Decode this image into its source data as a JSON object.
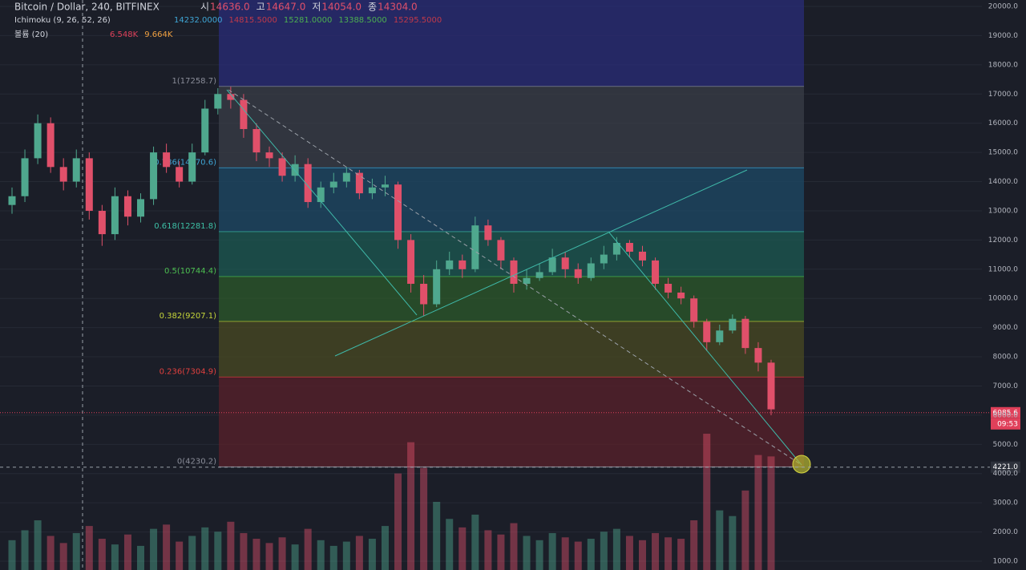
{
  "chart_data": {
    "type": "candlestick",
    "title": "Bitcoin / Dollar, 240, BITFINEX",
    "legend_ohlc": [
      {
        "label": "시",
        "value": "14636.0"
      },
      {
        "label": "고",
        "value": "14647.0"
      },
      {
        "label": "저",
        "value": "14054.0"
      },
      {
        "label": "종",
        "value": "14304.0"
      }
    ],
    "indicators": [
      {
        "name": "Ichimoku (9, 26, 52, 26)",
        "values": [
          "14232.0000",
          "14815.5000",
          "15281.0000",
          "13388.5000",
          "15295.5000"
        ],
        "colors": [
          "#3fa6d6",
          "#c0394a",
          "#4caf50",
          "#4caf50",
          "#c0394a"
        ]
      },
      {
        "name": "볼륨 (20)",
        "values": [
          "6.548K",
          "9.664K"
        ],
        "colors": [
          "#e0405a",
          "#f0a040"
        ]
      }
    ],
    "up_color": "#4fa88e",
    "down_color": "#e0506a",
    "ylim": [
      698,
      20220
    ],
    "yticks": [
      {
        "value": 1000,
        "label": "1000.0"
      },
      {
        "value": 2000,
        "label": "2000.0"
      },
      {
        "value": 3000,
        "label": "3000.0"
      },
      {
        "value": 4000,
        "label": "4000.0"
      },
      {
        "value": 5000,
        "label": "5000.0"
      },
      {
        "value": 6000,
        "label": "6000.0"
      },
      {
        "value": 7000,
        "label": "7000.0"
      },
      {
        "value": 8000,
        "label": "8000.0"
      },
      {
        "value": 9000,
        "label": "9000.0"
      },
      {
        "value": 10000,
        "label": "10000.0"
      },
      {
        "value": 11000,
        "label": "11000.0"
      },
      {
        "value": 12000,
        "label": "12000.0"
      },
      {
        "value": 13000,
        "label": "13000.0"
      },
      {
        "value": 14000,
        "label": "14000.0"
      },
      {
        "value": 15000,
        "label": "15000.0"
      },
      {
        "value": 16000,
        "label": "16000.0"
      },
      {
        "value": 17000,
        "label": "17000.0"
      },
      {
        "value": 18000,
        "label": "18000.0"
      },
      {
        "value": 19000,
        "label": "19000.0"
      },
      {
        "value": 20000,
        "label": "20000.0"
      }
    ],
    "grid": true,
    "open": [
      13200,
      13500,
      14800,
      16000,
      14500,
      14000,
      14800,
      13000,
      12200,
      13500,
      12800,
      13400,
      15000,
      14500,
      14000,
      15000,
      16500,
      17000,
      16800,
      15800,
      15000,
      14800,
      14200,
      14600,
      13300,
      13800,
      14000,
      14300,
      13600,
      13800,
      13900,
      12000,
      10500,
      9800,
      11000,
      11300,
      11000,
      12500,
      12000,
      11300,
      10500,
      10700,
      10900,
      11400,
      11000,
      10700,
      11200,
      11500,
      11900,
      11600,
      11300,
      10500,
      10200,
      10000,
      9200,
      8500,
      8900,
      9300,
      8300,
      7800
    ],
    "high": [
      13800,
      15100,
      16300,
      16200,
      14800,
      15100,
      15000,
      13200,
      13800,
      13700,
      13600,
      15200,
      15300,
      14700,
      15300,
      16800,
      17200,
      17250,
      17000,
      16000,
      15200,
      15000,
      14900,
      14800,
      14000,
      14300,
      14500,
      14400,
      14100,
      14200,
      14000,
      12200,
      10800,
      11300,
      11600,
      11500,
      12800,
      12700,
      12100,
      11400,
      11000,
      11200,
      11700,
      11600,
      11200,
      11400,
      11800,
      12100,
      12000,
      11800,
      11400,
      10700,
      10400,
      10100,
      9300,
      9100,
      9450,
      9400,
      8500,
      7900
    ],
    "low": [
      12900,
      13300,
      14600,
      14300,
      13700,
      13800,
      12700,
      11800,
      12000,
      12500,
      12600,
      13200,
      14300,
      13800,
      13900,
      14900,
      16300,
      16500,
      15500,
      14700,
      14500,
      14000,
      14000,
      13100,
      13100,
      13600,
      13800,
      13400,
      13400,
      13500,
      11700,
      10200,
      9400,
      9700,
      10800,
      10700,
      10900,
      11800,
      11000,
      10200,
      10300,
      10600,
      10800,
      10700,
      10500,
      10600,
      11000,
      11300,
      11400,
      11100,
      10300,
      10000,
      9800,
      9000,
      8200,
      8400,
      8800,
      8100,
      7500,
      6000
    ],
    "close": [
      13500,
      14800,
      16000,
      14500,
      14000,
      14800,
      13000,
      12200,
      13500,
      12800,
      13400,
      15000,
      14500,
      14000,
      15000,
      16500,
      17000,
      16800,
      15800,
      15000,
      14800,
      14200,
      14600,
      13300,
      13800,
      14000,
      14300,
      13600,
      13800,
      13900,
      12000,
      10500,
      9800,
      11000,
      11300,
      11000,
      12500,
      12000,
      11300,
      10500,
      10700,
      10900,
      11400,
      11000,
      10700,
      11200,
      11500,
      11900,
      11600,
      11300,
      10500,
      10200,
      10000,
      9200,
      8500,
      8900,
      9300,
      8300,
      7800,
      6200
    ],
    "volume": [
      2.1,
      2.8,
      3.5,
      2.4,
      1.9,
      2.6,
      3.1,
      2.2,
      1.8,
      2.5,
      1.7,
      2.9,
      3.2,
      2.0,
      2.4,
      3.0,
      2.7,
      3.4,
      2.6,
      2.2,
      1.9,
      2.3,
      1.8,
      2.9,
      2.1,
      1.7,
      2.0,
      2.4,
      2.2,
      3.1,
      6.8,
      9.0,
      7.2,
      4.8,
      3.6,
      3.0,
      3.9,
      2.8,
      2.5,
      3.3,
      2.4,
      2.1,
      2.6,
      2.3,
      2.0,
      2.2,
      2.7,
      2.9,
      2.4,
      2.1,
      2.6,
      2.3,
      2.2,
      3.5,
      9.6,
      4.2,
      3.8,
      5.6,
      8.1,
      8.0
    ],
    "fib_levels": [
      {
        "value": 17258.7,
        "label": "1(17258.7)",
        "zone_color": "#2a2c78",
        "line_color": "#8a8d99"
      },
      {
        "value": 14470.6,
        "label": "0.786(14470.6)",
        "zone_color": "#3a3d47",
        "line_color": "#3fa6d6"
      },
      {
        "value": 12281.8,
        "label": "0.618(12281.8)",
        "zone_color": "#1d4a66",
        "line_color": "#3dc0a6"
      },
      {
        "value": 10744.4,
        "label": "0.5(10744.4)",
        "zone_color": "#1c5a52",
        "line_color": "#4cbf50"
      },
      {
        "value": 9207.1,
        "label": "0.382(9207.1)",
        "zone_color": "#2c5a2a",
        "line_color": "#c6d63a"
      },
      {
        "value": 7304.9,
        "label": "0.236(7304.9)",
        "zone_color": "#4a4a22",
        "line_color": "#e0403e"
      },
      {
        "value": 4230.2,
        "label": "0(4230.2)",
        "zone_color": "#5a2029",
        "line_color": "#8a8d99"
      }
    ],
    "price_marks": [
      {
        "value": 6085.6,
        "label": "6085.6",
        "color": "#e0405a"
      },
      {
        "value": 4221.0,
        "label": "4221.0",
        "color": "#2e323c"
      }
    ],
    "countdown": "09:53"
  }
}
